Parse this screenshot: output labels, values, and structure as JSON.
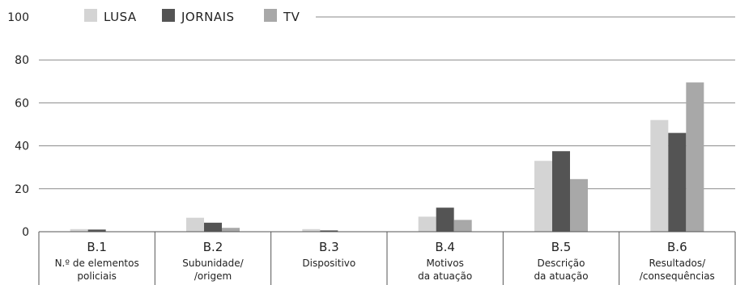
{
  "chart_data": {
    "type": "bar",
    "categories": [
      {
        "code": "B.1",
        "lines": [
          "N.º de elementos",
          "policiais"
        ]
      },
      {
        "code": "B.2",
        "lines": [
          "Subunidade/",
          "/origem"
        ]
      },
      {
        "code": "B.3",
        "lines": [
          "Dispositivo"
        ]
      },
      {
        "code": "B.4",
        "lines": [
          "Motivos",
          "da atuação"
        ]
      },
      {
        "code": "B.5",
        "lines": [
          "Descrição",
          "da atuação"
        ]
      },
      {
        "code": "B.6",
        "lines": [
          "Resultados/",
          "/consequências"
        ]
      }
    ],
    "series": [
      {
        "name": "LUSA",
        "color": "#d4d4d4",
        "values": [
          1.2,
          6.5,
          1.2,
          7.0,
          33.0,
          52.0
        ]
      },
      {
        "name": "JORNAIS",
        "color": "#545454",
        "values": [
          1.0,
          4.2,
          0.6,
          11.2,
          37.5,
          46.0
        ]
      },
      {
        "name": "TV",
        "color": "#a8a8a8",
        "values": [
          0,
          1.8,
          0,
          5.5,
          24.5,
          69.5
        ]
      }
    ],
    "ylim": [
      0,
      100
    ],
    "yticks": [
      0,
      20,
      40,
      60,
      80,
      100
    ],
    "grid": true,
    "legend_position": "top"
  }
}
